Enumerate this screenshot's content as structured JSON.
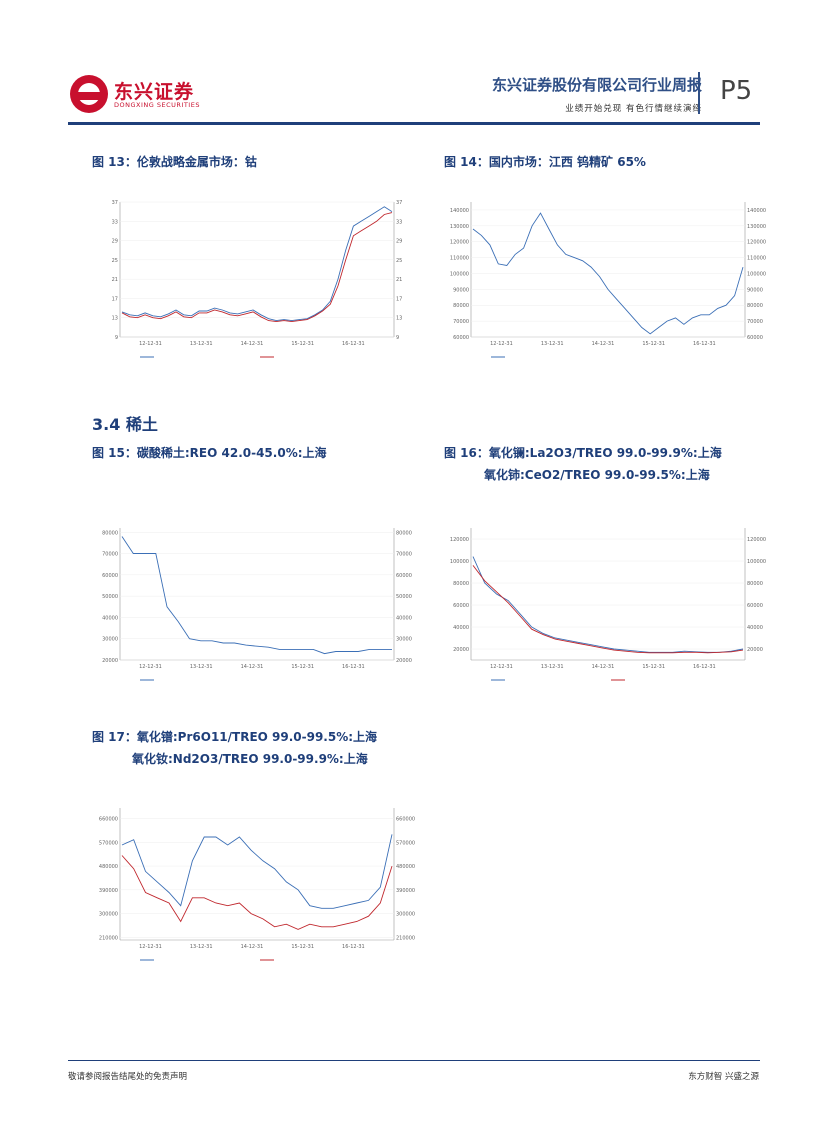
{
  "header": {
    "company_cn": "东兴证券",
    "company_en": "DONGXING SECURITIES",
    "title": "东兴证券股份有限公司行业周报",
    "subtitle": "业绩开始兑现 有色行情继续演绎",
    "page": "P5"
  },
  "colors": {
    "brand_red": "#c8102e",
    "navy": "#1f3f7a",
    "series_blue": "#3b6fb6",
    "series_red": "#c0272d"
  },
  "section": {
    "title": "3.4  稀土"
  },
  "figures": {
    "fig13": {
      "caption": "图 13：伦敦战略金属市场：钴"
    },
    "fig14": {
      "caption": "图 14：国内市场：江西 钨精矿 65%"
    },
    "fig15": {
      "caption": "图 15：碳酸稀土:REO 42.0-45.0%:上海"
    },
    "fig16": {
      "caption_line1": "图 16：氧化镧:La2O3/TREO 99.0-99.9%:上海",
      "caption_line2": "氧化铈:CeO2/TREO 99.0-99.5%:上海"
    },
    "fig17": {
      "caption_line1": "图 17：氧化镨:Pr6O11/TREO 99.0-99.5%:上海",
      "caption_line2": "氧化钕:Nd2O3/TREO 99.0-99.9%:上海"
    }
  },
  "chart_data": [
    {
      "id": "fig13",
      "type": "line",
      "x_ticks": [
        "12-12-31",
        "13-12-31",
        "14-12-31",
        "15-12-31",
        "16-12-31"
      ],
      "y_ticks": [
        "9",
        "13",
        "17",
        "21",
        "25",
        "29",
        "33",
        "37"
      ],
      "ylim": [
        9,
        37
      ],
      "series": [
        {
          "color": "#3b6fb6",
          "values": [
            14.2,
            13.6,
            13.4,
            14.0,
            13.4,
            13.2,
            13.8,
            14.6,
            13.6,
            13.4,
            14.4,
            14.4,
            15.0,
            14.6,
            14.0,
            13.8,
            14.2,
            14.6,
            13.6,
            12.8,
            12.4,
            12.6,
            12.4,
            12.6,
            12.8,
            13.6,
            14.6,
            16.4,
            21.0,
            27.0,
            32.0,
            33.0,
            34.0,
            35.0,
            36.0,
            35.0
          ]
        },
        {
          "color": "#c0272d",
          "values": [
            14.0,
            13.2,
            13.0,
            13.6,
            13.0,
            12.8,
            13.4,
            14.2,
            13.2,
            13.0,
            14.0,
            14.0,
            14.6,
            14.2,
            13.6,
            13.4,
            13.8,
            14.2,
            13.2,
            12.4,
            12.2,
            12.4,
            12.2,
            12.4,
            12.6,
            13.4,
            14.4,
            15.8,
            19.6,
            25.0,
            30.0,
            31.0,
            32.0,
            33.0,
            34.4,
            34.8
          ]
        }
      ]
    },
    {
      "id": "fig14",
      "type": "line",
      "x_ticks": [
        "12-12-31",
        "13-12-31",
        "14-12-31",
        "15-12-31",
        "16-12-31"
      ],
      "y_ticks": [
        "60000",
        "70000",
        "80000",
        "90000",
        "100000",
        "110000",
        "120000",
        "130000",
        "140000"
      ],
      "ylim": [
        60000,
        145000
      ],
      "series": [
        {
          "color": "#3b6fb6",
          "values": [
            128000,
            124000,
            118000,
            106000,
            105000,
            112000,
            116000,
            130000,
            138000,
            128000,
            118000,
            112000,
            110000,
            108000,
            104000,
            98000,
            90000,
            84000,
            78000,
            72000,
            66000,
            62000,
            66000,
            70000,
            72000,
            68000,
            72000,
            74000,
            74000,
            78000,
            80000,
            86000,
            104000
          ]
        }
      ]
    },
    {
      "id": "fig15",
      "type": "line",
      "x_ticks": [
        "12-12-31",
        "13-12-31",
        "14-12-31",
        "15-12-31",
        "16-12-31"
      ],
      "y_ticks": [
        "20000",
        "30000",
        "40000",
        "50000",
        "60000",
        "70000",
        "80000"
      ],
      "ylim": [
        20000,
        82000
      ],
      "series": [
        {
          "color": "#3b6fb6",
          "values": [
            78000,
            70000,
            70000,
            70000,
            45000,
            38000,
            30000,
            29000,
            29000,
            28000,
            28000,
            27000,
            26500,
            26000,
            25000,
            25000,
            25000,
            25000,
            23000,
            24000,
            24000,
            24000,
            25000,
            25000,
            25000
          ]
        }
      ]
    },
    {
      "id": "fig16",
      "type": "line",
      "x_ticks": [
        "12-12-31",
        "13-12-31",
        "14-12-31",
        "15-12-31",
        "16-12-31"
      ],
      "y_ticks": [
        "20000",
        "40000",
        "60000",
        "80000",
        "100000",
        "120000"
      ],
      "ylim": [
        10000,
        130000
      ],
      "series": [
        {
          "color": "#3b6fb6",
          "values": [
            104000,
            80000,
            70000,
            64000,
            52000,
            40000,
            34000,
            30000,
            28000,
            26000,
            24000,
            22000,
            20000,
            19000,
            18000,
            17000,
            17000,
            17000,
            18000,
            17500,
            17000,
            17000,
            18000,
            20000
          ]
        },
        {
          "color": "#c0272d",
          "values": [
            96000,
            82000,
            72000,
            62000,
            50000,
            38000,
            33000,
            29000,
            27000,
            25000,
            23000,
            21000,
            19000,
            18000,
            17000,
            16500,
            16500,
            16500,
            17000,
            17000,
            16500,
            17000,
            17500,
            19000
          ]
        }
      ]
    },
    {
      "id": "fig17",
      "type": "line",
      "x_ticks": [
        "12-12-31",
        "13-12-31",
        "14-12-31",
        "15-12-31",
        "16-12-31"
      ],
      "y_ticks": [
        "210000",
        "300000",
        "390000",
        "480000",
        "570000",
        "660000"
      ],
      "ylim": [
        200000,
        700000
      ],
      "series": [
        {
          "color": "#3b6fb6",
          "values": [
            560000,
            580000,
            460000,
            420000,
            380000,
            330000,
            500000,
            590000,
            590000,
            560000,
            590000,
            540000,
            500000,
            470000,
            420000,
            390000,
            330000,
            320000,
            320000,
            330000,
            340000,
            350000,
            400000,
            600000
          ]
        },
        {
          "color": "#c0272d",
          "values": [
            520000,
            470000,
            380000,
            360000,
            340000,
            270000,
            360000,
            360000,
            340000,
            330000,
            340000,
            300000,
            280000,
            250000,
            260000,
            240000,
            260000,
            250000,
            250000,
            260000,
            270000,
            290000,
            340000,
            480000
          ]
        }
      ]
    }
  ],
  "footer": {
    "left": "敬请参阅报告结尾处的免责声明",
    "right": "东方财智 兴盛之源"
  }
}
